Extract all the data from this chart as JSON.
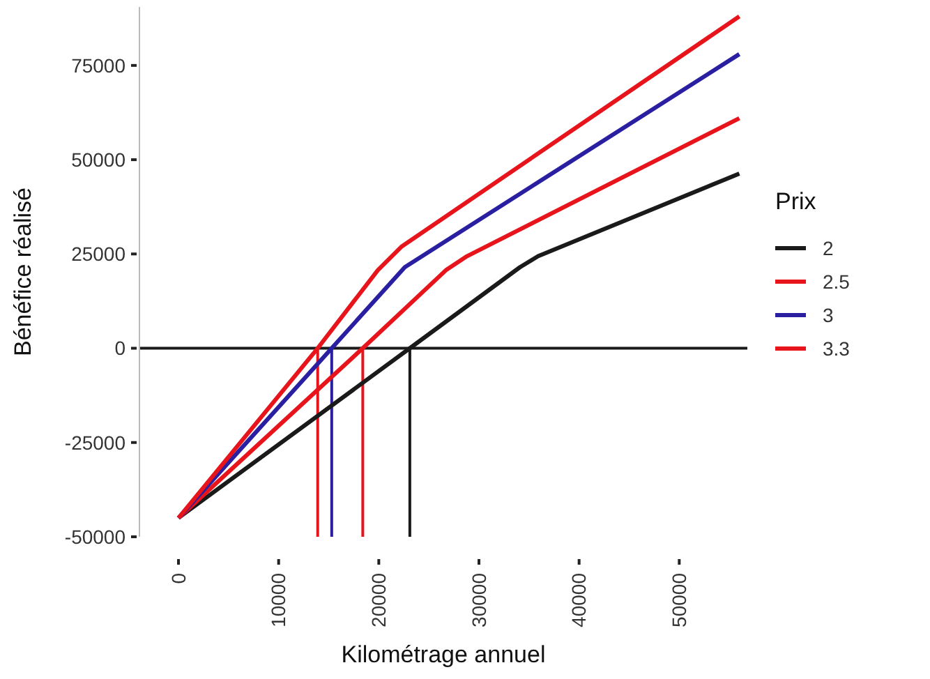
{
  "chart_data": {
    "type": "line",
    "xlabel": "Kilométrage annuel",
    "ylabel": "Bénéfice réalisé",
    "legend_title": "Prix",
    "legend": "right",
    "grid": false,
    "xlim": [
      -3900,
      56800
    ],
    "ylim": [
      -50000,
      90500
    ],
    "xticks": [
      0,
      10000,
      20000,
      30000,
      40000,
      50000
    ],
    "yticks": [
      -50000,
      -25000,
      0,
      25000,
      50000,
      75000
    ],
    "series": [
      {
        "name": "2",
        "color": "#1a1a1a",
        "x": [
          0,
          23100,
          34100,
          35900,
          56000
        ],
        "values": [
          -45000,
          0,
          21500,
          24400,
          46300
        ]
      },
      {
        "name": "2.5",
        "color": "#e8141c",
        "x": [
          0,
          18400,
          26700,
          28800,
          56000
        ],
        "values": [
          -45000,
          0,
          20700,
          24400,
          61000
        ]
      },
      {
        "name": "3",
        "color": "#2a1fa0",
        "x": [
          0,
          15300,
          22600,
          56000
        ],
        "values": [
          -45000,
          0,
          21500,
          78000
        ]
      },
      {
        "name": "3.3",
        "color": "#e8141c",
        "x": [
          0,
          13900,
          19900,
          22300,
          56000
        ],
        "values": [
          -45000,
          0,
          20700,
          27000,
          88000
        ]
      }
    ],
    "ref_lines": [
      {
        "axis": "y",
        "value": 0,
        "color": "#1a1a1a"
      },
      {
        "axis": "x",
        "value": 13900,
        "color": "#e8141c"
      },
      {
        "axis": "x",
        "value": 15300,
        "color": "#2a1fa0"
      },
      {
        "axis": "x",
        "value": 18400,
        "color": "#e8141c"
      },
      {
        "axis": "x",
        "value": 23100,
        "color": "#1a1a1a"
      }
    ]
  }
}
